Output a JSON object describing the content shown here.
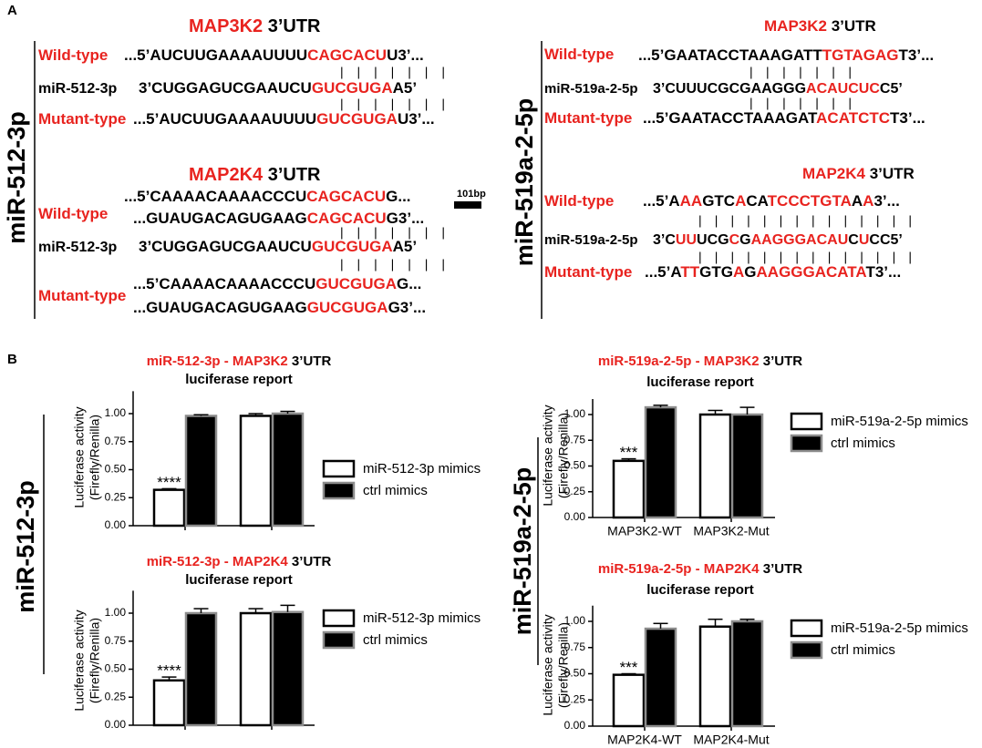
{
  "panel_labels": [
    "A",
    "B"
  ],
  "panel_a": {
    "left": {
      "side_label": "miR-512-3p",
      "scale_label": "101bp",
      "lines": [
        [
          {
            "text": "MAP3K2",
            "color": "#e8231f"
          },
          {
            "text": " 3’UTR",
            "color": "#000000"
          }
        ],
        [
          {
            "text": "Wild-type",
            "color": "#e8231f"
          }
        ],
        [
          {
            "text": "...5’AUCUUGAAAAUUUU",
            "color": "#000000"
          },
          {
            "text": "CAGCACU",
            "color": "#e8231f"
          },
          {
            "text": "U3’...",
            "color": "#000000"
          }
        ],
        [
          {
            "text": "miR-512-3p",
            "color": "#000000"
          }
        ],
        [
          {
            "text": "3’CUGGAGUCGAAUCU",
            "color": "#000000"
          },
          {
            "text": "GUCGUGA",
            "color": "#e8231f"
          },
          {
            "text": "A5’",
            "color": "#000000"
          }
        ],
        [
          {
            "text": "Mutant-type",
            "color": "#e8231f"
          }
        ],
        [
          {
            "text": "...5’AUCUUGAAAAUUUU",
            "color": "#000000"
          },
          {
            "text": "GUCGUGA",
            "color": "#e8231f"
          },
          {
            "text": "U3’...",
            "color": "#000000"
          }
        ],
        [
          {
            "text": "MAP2K4",
            "color": "#e8231f"
          },
          {
            "text": " 3’UTR",
            "color": "#000000"
          }
        ],
        [
          {
            "text": "Wild-type",
            "color": "#e8231f"
          }
        ],
        [
          {
            "text": "...5’CAAAACAAAACCCU",
            "color": "#000000"
          },
          {
            "text": "CAGCACU",
            "color": "#e8231f"
          },
          {
            "text": "G...",
            "color": "#000000"
          }
        ],
        [
          {
            "text": "...GUAUGACAGUGAAG",
            "color": "#000000"
          },
          {
            "text": "CAGCACU",
            "color": "#e8231f"
          },
          {
            "text": "G3’...",
            "color": "#000000"
          }
        ],
        [
          {
            "text": "miR-512-3p",
            "color": "#000000"
          }
        ],
        [
          {
            "text": "3’CUGGAGUCGAAUCU",
            "color": "#000000"
          },
          {
            "text": "GUCGUGA",
            "color": "#e8231f"
          },
          {
            "text": "A5’",
            "color": "#000000"
          }
        ],
        [
          {
            "text": "Mutant-type",
            "color": "#e8231f"
          }
        ],
        [
          {
            "text": "...5’CAAAACAAAACCCU",
            "color": "#000000"
          },
          {
            "text": "GUCGUGA",
            "color": "#e8231f"
          },
          {
            "text": "G...",
            "color": "#000000"
          }
        ],
        [
          {
            "text": "...GUAUGACAGUGAAG",
            "color": "#000000"
          },
          {
            "text": "GUCGUGA",
            "color": "#e8231f"
          },
          {
            "text": "G3’...",
            "color": "#000000"
          }
        ]
      ],
      "pairs": [
        "| | | | | | |",
        "| | | | | | |",
        "| | | | | | |",
        "| | | | | | |"
      ]
    },
    "right": {
      "side_label": "miR-519a-2-5p",
      "lines": [
        [
          {
            "text": "MAP3K2",
            "color": "#e8231f"
          },
          {
            "text": " 3’UTR",
            "color": "#000000"
          }
        ],
        [
          {
            "text": "Wild-type",
            "color": "#e8231f"
          }
        ],
        [
          {
            "text": "...5’GAATACCTAAAGATT",
            "color": "#000000"
          },
          {
            "text": "TGTAGAG",
            "color": "#e8231f"
          },
          {
            "text": "T3’...",
            "color": "#000000"
          }
        ],
        [
          {
            "text": "miR-519a-2-5p",
            "color": "#000000"
          }
        ],
        [
          {
            "text": "3’CUUUCGCGAAGGG",
            "color": "#000000"
          },
          {
            "text": "ACAUCUC",
            "color": "#e8231f"
          },
          {
            "text": "C5’",
            "color": "#000000"
          }
        ],
        [
          {
            "text": "Mutant-type",
            "color": "#e8231f"
          }
        ],
        [
          {
            "text": "...5’GAATACCTAAAGAT",
            "color": "#000000"
          },
          {
            "text": "ACATCTC",
            "color": "#e8231f"
          },
          {
            "text": "T3’...",
            "color": "#000000"
          }
        ],
        [
          {
            "text": "MAP2K4",
            "color": "#e8231f"
          },
          {
            "text": " 3’UTR",
            "color": "#000000"
          }
        ],
        [
          {
            "text": "Wild-type",
            "color": "#e8231f"
          }
        ],
        [
          {
            "text": "...5’A",
            "color": "#000000"
          },
          {
            "text": "AA",
            "color": "#e8231f"
          },
          {
            "text": "GTC",
            "color": "#000000"
          },
          {
            "text": "A",
            "color": "#e8231f"
          },
          {
            "text": "CA",
            "color": "#000000"
          },
          {
            "text": "TCCCTGTA",
            "color": "#e8231f"
          },
          {
            "text": "A",
            "color": "#000000"
          },
          {
            "text": "A",
            "color": "#e8231f"
          },
          {
            "text": "3’...",
            "color": "#000000"
          }
        ],
        [
          {
            "text": "miR-519a-2-5p",
            "color": "#000000"
          }
        ],
        [
          {
            "text": "3’C",
            "color": "#000000"
          },
          {
            "text": "UU",
            "color": "#e8231f"
          },
          {
            "text": "UCG",
            "color": "#000000"
          },
          {
            "text": "C",
            "color": "#e8231f"
          },
          {
            "text": "G",
            "color": "#000000"
          },
          {
            "text": "AAGGGACAU",
            "color": "#e8231f"
          },
          {
            "text": "C",
            "color": "#000000"
          },
          {
            "text": "U",
            "color": "#e8231f"
          },
          {
            "text": "CC5’",
            "color": "#000000"
          }
        ],
        [
          {
            "text": "Mutant-type",
            "color": "#e8231f"
          }
        ],
        [
          {
            "text": "...5’A",
            "color": "#000000"
          },
          {
            "text": "TT",
            "color": "#e8231f"
          },
          {
            "text": "GTG",
            "color": "#000000"
          },
          {
            "text": "A",
            "color": "#e8231f"
          },
          {
            "text": "G",
            "color": "#000000"
          },
          {
            "text": "AAGGGACATA",
            "color": "#e8231f"
          },
          {
            "text": "T",
            "color": "#000000"
          },
          {
            "text": "3’...",
            "color": "#000000"
          }
        ]
      ],
      "pairs": [
        "| | | | | | |",
        "| | | | | | |",
        "| |   |   | |   | | | | | | | |   |",
        "| |   |   | |   | | | | | | | |   |"
      ]
    }
  },
  "panel_b_side_labels": [
    "miR-512-3p",
    "miR-519a-2-5p"
  ],
  "chart_data": [
    {
      "type": "bar",
      "title": [
        {
          "text": "miR-512-3p - MAP3K2",
          "color": "#e8231f"
        },
        {
          "text": " 3’UTR",
          "color": "#000000"
        }
      ],
      "subtitle": "luciferase report",
      "ylabel": [
        "Luciferase activity",
        "(Firefly/Renilla)"
      ],
      "categories": [
        null,
        null
      ],
      "series": [
        {
          "name": "miR-512-3p mimics",
          "color": "#ffffff",
          "edgecolor": "#000000",
          "values": [
            0.32,
            0.98
          ],
          "errors": [
            0.01,
            0.02
          ],
          "significance": [
            "****",
            null
          ]
        },
        {
          "name": "ctrl mimics",
          "color": "#000000",
          "edgecolor": "#8c8c8c",
          "values": [
            0.98,
            1.0
          ],
          "errors": [
            0.01,
            0.02
          ]
        }
      ],
      "ylim": [
        0,
        1.2
      ],
      "yticks": [
        {
          "value": 0,
          "label": "0.00"
        },
        {
          "value": 0.25,
          "label": "0.25"
        },
        {
          "value": 0.5,
          "label": "0.50"
        },
        {
          "value": 0.75,
          "label": "0.75"
        },
        {
          "value": 1,
          "label": "1.00"
        }
      ]
    },
    {
      "type": "bar",
      "title": [
        {
          "text": "miR-512-3p - MAP2K4",
          "color": "#e8231f"
        },
        {
          "text": " 3’UTR",
          "color": "#000000"
        }
      ],
      "subtitle": "luciferase report",
      "ylabel": [
        "Luciferase activity",
        "(Firefly/Renilla)"
      ],
      "categories": [
        null,
        null
      ],
      "series": [
        {
          "name": "miR-512-3p mimics",
          "color": "#ffffff",
          "edgecolor": "#000000",
          "values": [
            0.4,
            1.0
          ],
          "errors": [
            0.03,
            0.04
          ],
          "significance": [
            "****",
            null
          ]
        },
        {
          "name": "ctrl mimics",
          "color": "#000000",
          "edgecolor": "#8c8c8c",
          "values": [
            1.0,
            1.01
          ],
          "errors": [
            0.04,
            0.06
          ]
        }
      ],
      "ylim": [
        0,
        1.2
      ],
      "yticks": [
        {
          "value": 0,
          "label": "0.00"
        },
        {
          "value": 0.25,
          "label": "0.25"
        },
        {
          "value": 0.5,
          "label": "0.50"
        },
        {
          "value": 0.75,
          "label": "0.75"
        },
        {
          "value": 1,
          "label": "1.00"
        }
      ]
    },
    {
      "type": "bar",
      "title": [
        {
          "text": "miR-519a-2-5p - MAP3K2",
          "color": "#e8231f"
        },
        {
          "text": " 3’UTR",
          "color": "#000000"
        }
      ],
      "subtitle": "luciferase report",
      "ylabel": [
        "Luciferase activity",
        "(Firefly/Renilla)"
      ],
      "categories": [
        "MAP3K2-WT",
        "MAP3K2-Mut"
      ],
      "series": [
        {
          "name": "miR-519a-2-5p mimics",
          "color": "#ffffff",
          "edgecolor": "#000000",
          "values": [
            0.55,
            1.0
          ],
          "errors": [
            0.02,
            0.04
          ],
          "significance": [
            "***",
            null
          ]
        },
        {
          "name": "ctrl mimics",
          "color": "#000000",
          "edgecolor": "#8c8c8c",
          "values": [
            1.07,
            1.0
          ],
          "errors": [
            0.02,
            0.07
          ]
        }
      ],
      "ylim": [
        0,
        1.15
      ],
      "yticks": [
        {
          "value": 0,
          "label": "0.00"
        },
        {
          "value": 0.25,
          "label": "0.25"
        },
        {
          "value": 0.5,
          "label": "0.50"
        },
        {
          "value": 0.75,
          "label": "0.75"
        },
        {
          "value": 1,
          "label": "1.00"
        }
      ]
    },
    {
      "type": "bar",
      "title": [
        {
          "text": "miR-519a-2-5p - MAP2K4",
          "color": "#e8231f"
        },
        {
          "text": " 3’UTR",
          "color": "#000000"
        }
      ],
      "subtitle": "luciferase report",
      "ylabel": [
        "Luciferase activity",
        "(Firefly/Renilla)"
      ],
      "categories": [
        "MAP2K4-WT",
        "MAP2K4-Mut"
      ],
      "series": [
        {
          "name": "miR-519a-2-5p mimics",
          "color": "#ffffff",
          "edgecolor": "#000000",
          "values": [
            0.49,
            0.95
          ],
          "errors": [
            0.01,
            0.07
          ],
          "significance": [
            "***",
            null
          ]
        },
        {
          "name": "ctrl mimics",
          "color": "#000000",
          "edgecolor": "#8c8c8c",
          "values": [
            0.93,
            1.0
          ],
          "errors": [
            0.05,
            0.02
          ]
        }
      ],
      "ylim": [
        0,
        1.15
      ],
      "yticks": [
        {
          "value": 0,
          "label": "0.00"
        },
        {
          "value": 0.25,
          "label": "0.25"
        },
        {
          "value": 0.5,
          "label": "0.50"
        },
        {
          "value": 0.75,
          "label": "0.75"
        },
        {
          "value": 1,
          "label": "1.00"
        }
      ]
    }
  ]
}
